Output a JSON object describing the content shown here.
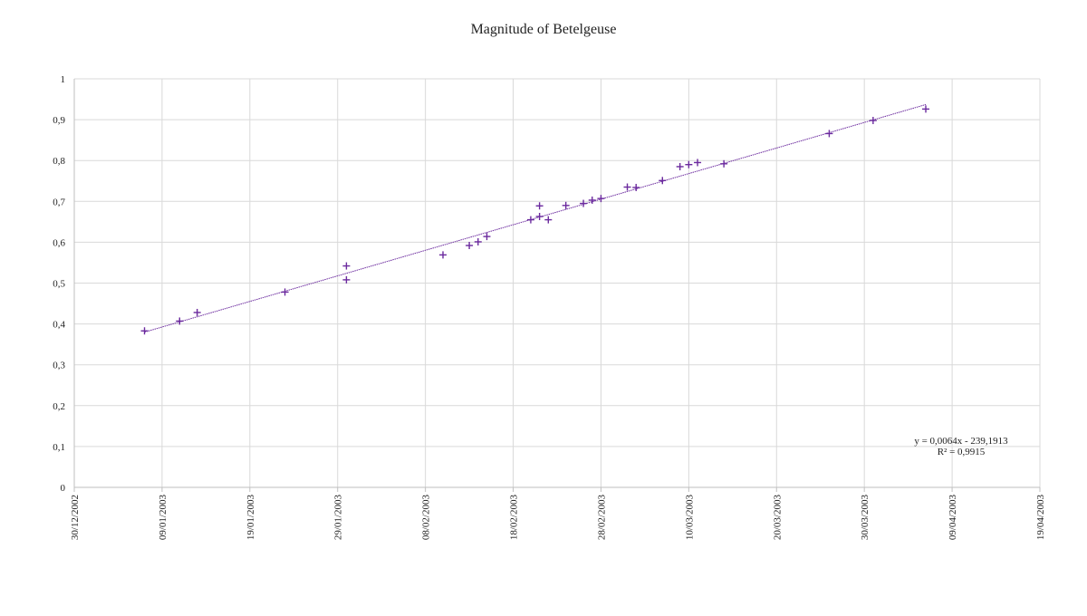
{
  "chart_data": {
    "type": "scatter",
    "title": "Magnitude of Betelgeuse",
    "xlabel": "",
    "ylabel": "",
    "xlim": [
      "30/12/2002",
      "19/04/2003"
    ],
    "ylim": [
      0,
      1
    ],
    "grid": true,
    "x_ticks": [
      "30/12/2002",
      "09/01/2003",
      "19/01/2003",
      "29/01/2003",
      "08/02/2003",
      "18/02/2003",
      "28/02/2003",
      "10/03/2003",
      "20/03/2003",
      "30/03/2003",
      "09/04/2003",
      "19/04/2003"
    ],
    "y_ticks": [
      "0",
      "0,1",
      "0,2",
      "0,3",
      "0,4",
      "0,5",
      "0,6",
      "0,7",
      "0,8",
      "0,9",
      "1"
    ],
    "series": [
      {
        "marker": "+",
        "color": "#6b2a9e",
        "points": [
          {
            "x": "07/01/2003",
            "y": 0.383
          },
          {
            "x": "11/01/2003",
            "y": 0.407
          },
          {
            "x": "13/01/2003",
            "y": 0.428
          },
          {
            "x": "23/01/2003",
            "y": 0.478
          },
          {
            "x": "30/01/2003",
            "y": 0.542
          },
          {
            "x": "30/01/2003",
            "y": 0.508
          },
          {
            "x": "10/02/2003",
            "y": 0.569
          },
          {
            "x": "13/02/2003",
            "y": 0.592
          },
          {
            "x": "14/02/2003",
            "y": 0.601
          },
          {
            "x": "15/02/2003",
            "y": 0.614
          },
          {
            "x": "20/02/2003",
            "y": 0.655
          },
          {
            "x": "21/02/2003",
            "y": 0.663
          },
          {
            "x": "21/02/2003",
            "y": 0.689
          },
          {
            "x": "22/02/2003",
            "y": 0.655
          },
          {
            "x": "24/02/2003",
            "y": 0.69
          },
          {
            "x": "26/02/2003",
            "y": 0.695
          },
          {
            "x": "27/02/2003",
            "y": 0.703
          },
          {
            "x": "28/02/2003",
            "y": 0.707
          },
          {
            "x": "03/03/2003",
            "y": 0.735
          },
          {
            "x": "04/03/2003",
            "y": 0.734
          },
          {
            "x": "07/03/2003",
            "y": 0.751
          },
          {
            "x": "09/03/2003",
            "y": 0.785
          },
          {
            "x": "10/03/2003",
            "y": 0.79
          },
          {
            "x": "11/03/2003",
            "y": 0.795
          },
          {
            "x": "14/03/2003",
            "y": 0.792
          },
          {
            "x": "26/03/2003",
            "y": 0.866
          },
          {
            "x": "31/03/2003",
            "y": 0.898
          },
          {
            "x": "06/04/2003",
            "y": 0.926
          }
        ]
      }
    ],
    "trendline": {
      "type": "linear",
      "color": "#6b2a9e",
      "from": {
        "x": "07/01/2003",
        "y": 0.38
      },
      "to": {
        "x": "06/04/2003",
        "y": 0.937
      },
      "equation": "y = 0,0064x - 239,1913",
      "r_squared": "R² = 0,9915"
    }
  }
}
